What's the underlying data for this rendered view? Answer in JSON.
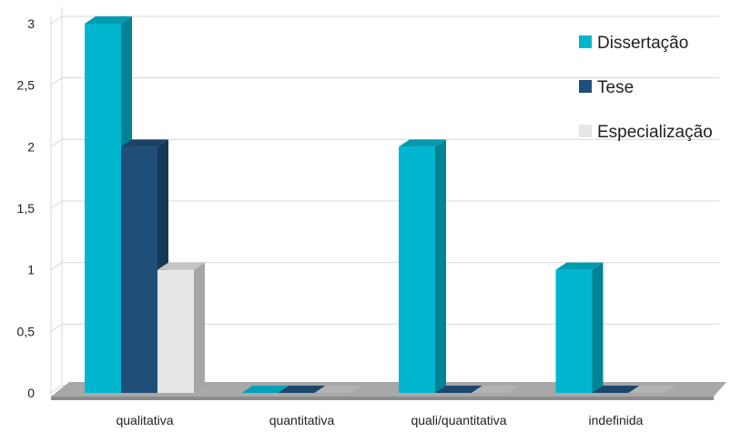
{
  "chart_data": {
    "type": "bar",
    "title": "",
    "xlabel": "",
    "ylabel": "",
    "categories": [
      "qualitativa",
      "quantitativa",
      "quali/quantitativa",
      "indefinida"
    ],
    "series": [
      {
        "name": "Dissertação",
        "values": [
          3,
          0,
          2,
          1
        ],
        "color": "#00b6cf"
      },
      {
        "name": "Tese",
        "values": [
          2,
          0,
          0,
          0
        ],
        "color": "#1f4e79"
      },
      {
        "name": "Especialização",
        "values": [
          1,
          0,
          0,
          0
        ],
        "color": "#e6e6e6"
      }
    ],
    "ylim": [
      0,
      3
    ],
    "yticks": [
      "0",
      "0,5",
      "1",
      "1,5",
      "2",
      "2,5",
      "3"
    ],
    "grid": true,
    "legend_position": "top-right",
    "style": "3d-column"
  }
}
